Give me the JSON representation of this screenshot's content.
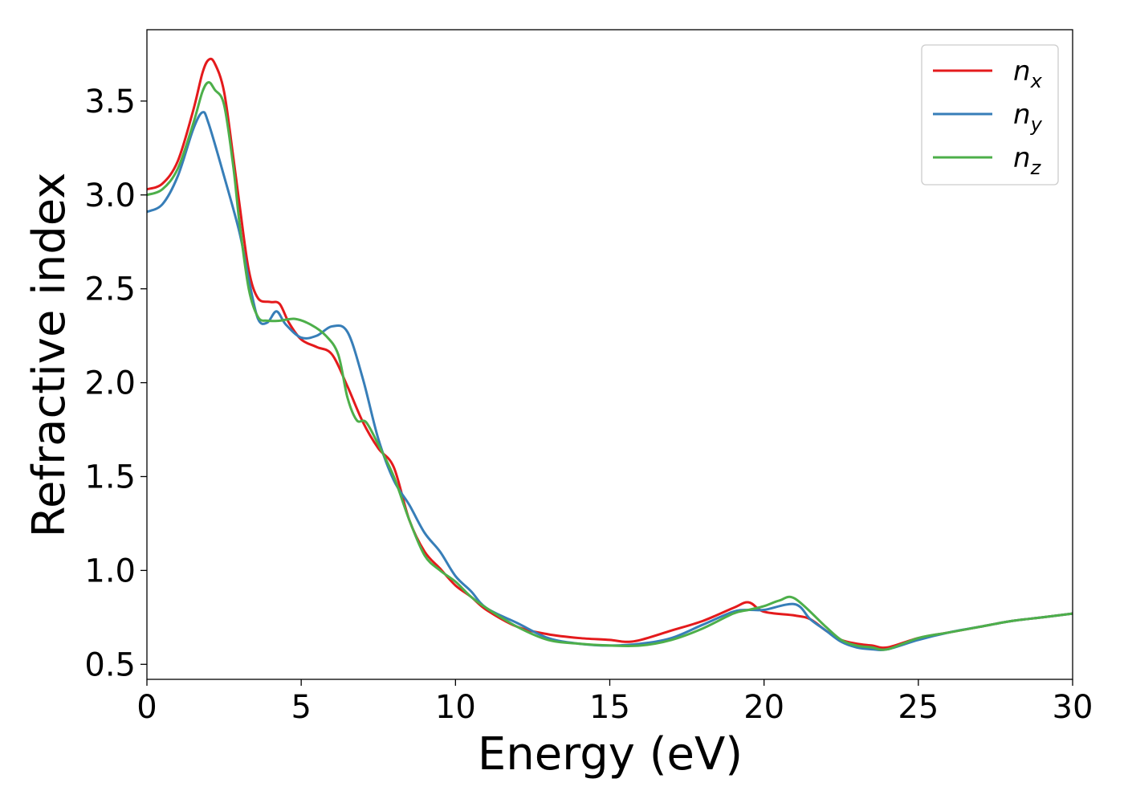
{
  "chart_data": {
    "type": "line",
    "title": "",
    "xlabel": "Energy (eV)",
    "ylabel": "Refractive index",
    "xlim": [
      0,
      30
    ],
    "ylim": [
      0.42,
      3.88
    ],
    "xticks": [
      0,
      5,
      10,
      15,
      20,
      25,
      30
    ],
    "yticks": [
      0.5,
      1.0,
      1.5,
      2.0,
      2.5,
      3.0,
      3.5
    ],
    "xtick_labels": [
      "0",
      "5",
      "10",
      "15",
      "20",
      "25",
      "30"
    ],
    "ytick_labels": [
      "0.5",
      "1.0",
      "1.5",
      "2.0",
      "2.5",
      "3.0",
      "3.5"
    ],
    "grid": false,
    "legend_position": "top-right",
    "series": [
      {
        "name": "n_x",
        "legend_base": "n",
        "legend_sub": "x",
        "color": "#e41a1c",
        "x": [
          0,
          0.5,
          1.0,
          1.5,
          1.8,
          2.0,
          2.2,
          2.5,
          2.8,
          3.0,
          3.3,
          3.6,
          4.0,
          4.3,
          4.6,
          5.0,
          5.5,
          6.0,
          6.5,
          7.0,
          7.5,
          8.0,
          8.5,
          9.0,
          9.5,
          10.0,
          10.5,
          11.0,
          12.0,
          13.0,
          14.0,
          15.0,
          15.5,
          16.0,
          17.0,
          18.0,
          19.0,
          19.5,
          20.0,
          21.0,
          21.5,
          22.0,
          22.5,
          23.0,
          23.5,
          24.0,
          25.0,
          26.0,
          27.0,
          28.0,
          29.0,
          30.0
        ],
        "y": [
          3.03,
          3.06,
          3.18,
          3.45,
          3.65,
          3.72,
          3.7,
          3.55,
          3.2,
          2.95,
          2.6,
          2.45,
          2.43,
          2.42,
          2.32,
          2.23,
          2.19,
          2.15,
          1.98,
          1.79,
          1.65,
          1.55,
          1.27,
          1.1,
          1.01,
          0.92,
          0.86,
          0.79,
          0.7,
          0.66,
          0.64,
          0.63,
          0.62,
          0.63,
          0.68,
          0.73,
          0.8,
          0.83,
          0.78,
          0.76,
          0.74,
          0.68,
          0.63,
          0.61,
          0.6,
          0.59,
          0.64,
          0.67,
          0.7,
          0.73,
          0.75,
          0.77
        ]
      },
      {
        "name": "n_y",
        "legend_base": "n",
        "legend_sub": "y",
        "color": "#377eb8",
        "x": [
          0,
          0.5,
          1.0,
          1.5,
          1.8,
          2.0,
          2.5,
          3.0,
          3.3,
          3.6,
          3.9,
          4.2,
          4.5,
          5.0,
          5.5,
          6.0,
          6.5,
          7.0,
          7.5,
          8.0,
          8.5,
          9.0,
          9.5,
          10.0,
          10.5,
          11.0,
          12.0,
          13.0,
          14.0,
          15.0,
          16.0,
          17.0,
          18.0,
          19.0,
          19.5,
          20.0,
          21.0,
          21.5,
          22.0,
          22.5,
          23.0,
          23.5,
          24.0,
          25.0,
          26.0,
          27.0,
          28.0,
          29.0,
          30.0
        ],
        "y": [
          2.91,
          2.95,
          3.1,
          3.35,
          3.44,
          3.38,
          3.1,
          2.8,
          2.55,
          2.34,
          2.32,
          2.38,
          2.31,
          2.24,
          2.25,
          2.3,
          2.27,
          2.02,
          1.7,
          1.48,
          1.35,
          1.2,
          1.1,
          0.97,
          0.89,
          0.8,
          0.72,
          0.64,
          0.61,
          0.6,
          0.61,
          0.64,
          0.71,
          0.78,
          0.79,
          0.79,
          0.82,
          0.74,
          0.68,
          0.62,
          0.59,
          0.58,
          0.58,
          0.63,
          0.67,
          0.7,
          0.73,
          0.75,
          0.77
        ]
      },
      {
        "name": "n_z",
        "legend_base": "n",
        "legend_sub": "z",
        "color": "#4daf4a",
        "x": [
          0,
          0.5,
          1.0,
          1.5,
          1.8,
          2.0,
          2.2,
          2.5,
          2.8,
          3.0,
          3.3,
          3.6,
          3.9,
          4.3,
          4.8,
          5.3,
          5.8,
          6.2,
          6.5,
          6.8,
          7.1,
          7.5,
          8.0,
          8.5,
          9.0,
          9.5,
          10.0,
          10.5,
          11.0,
          12.0,
          13.0,
          14.0,
          15.0,
          16.0,
          17.0,
          18.0,
          19.0,
          19.5,
          20.0,
          20.5,
          21.0,
          22.0,
          22.5,
          23.0,
          23.5,
          24.0,
          25.0,
          26.0,
          27.0,
          28.0,
          29.0,
          30.0
        ],
        "y": [
          3.0,
          3.03,
          3.14,
          3.38,
          3.55,
          3.6,
          3.56,
          3.48,
          3.15,
          2.85,
          2.5,
          2.35,
          2.33,
          2.33,
          2.34,
          2.31,
          2.25,
          2.15,
          1.92,
          1.8,
          1.79,
          1.67,
          1.5,
          1.27,
          1.08,
          1.0,
          0.94,
          0.86,
          0.8,
          0.7,
          0.63,
          0.61,
          0.6,
          0.6,
          0.63,
          0.69,
          0.77,
          0.79,
          0.81,
          0.84,
          0.85,
          0.7,
          0.63,
          0.6,
          0.59,
          0.58,
          0.64,
          0.67,
          0.7,
          0.73,
          0.75,
          0.77
        ]
      }
    ]
  }
}
